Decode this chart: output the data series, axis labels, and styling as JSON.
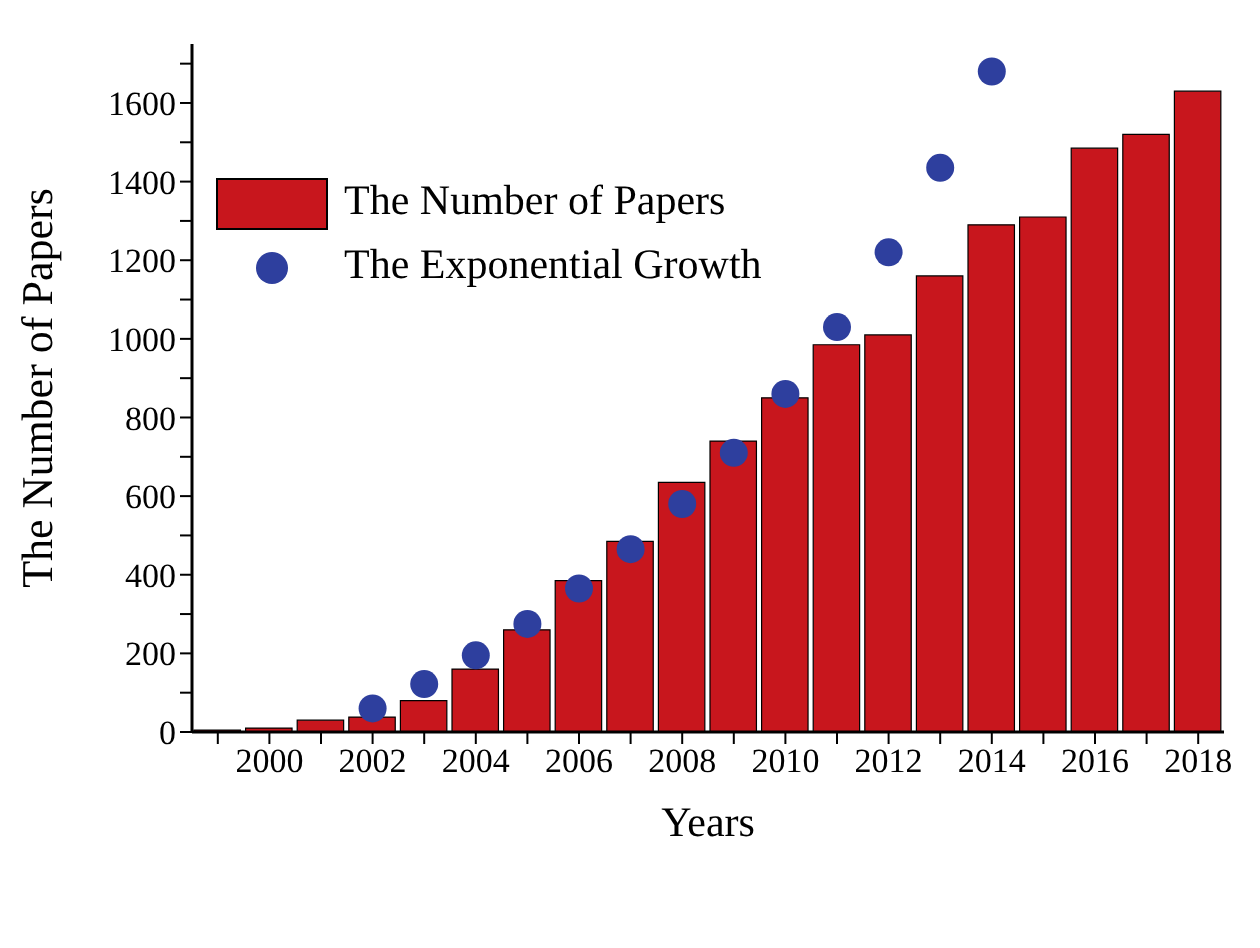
{
  "chart_data": {
    "type": "bar",
    "xlabel": "Years",
    "ylabel": "The Number of Papers",
    "x": [
      1999,
      2000,
      2001,
      2002,
      2003,
      2004,
      2005,
      2006,
      2007,
      2008,
      2009,
      2010,
      2011,
      2012,
      2013,
      2014,
      2015,
      2016,
      2017,
      2018
    ],
    "series": [
      {
        "name": "The Number of Papers",
        "color": "#c8161d",
        "values": [
          5,
          10,
          30,
          38,
          80,
          160,
          260,
          385,
          485,
          635,
          740,
          850,
          985,
          1010,
          1160,
          1290,
          1310,
          1485,
          1520,
          1630
        ]
      },
      {
        "name": "The Exponential Growth",
        "type": "scatter",
        "color": "#2e3f9e",
        "x": [
          2002,
          2003,
          2004,
          2005,
          2006,
          2007,
          2008,
          2009,
          2010,
          2011,
          2012,
          2013,
          2014
        ],
        "values": [
          60,
          122,
          195,
          275,
          365,
          465,
          580,
          710,
          860,
          1030,
          1220,
          1435,
          1680
        ]
      }
    ],
    "xlim": [
      1998.5,
      2018.5
    ],
    "xticks": [
      {
        "value": 1999,
        "label": null
      },
      2000,
      {
        "value": 2001,
        "label": null
      },
      2002,
      {
        "value": 2003,
        "label": null
      },
      2004,
      {
        "value": 2005,
        "label": null
      },
      2006,
      {
        "value": 2007,
        "label": null
      },
      2008,
      {
        "value": 2009,
        "label": null
      },
      2010,
      {
        "value": 2011,
        "label": null
      },
      2012,
      {
        "value": 2013,
        "label": null
      },
      2014,
      {
        "value": 2015,
        "label": null
      },
      2016,
      {
        "value": 2017,
        "label": null
      },
      2018
    ],
    "ylim": [
      0,
      1750
    ],
    "yticks": [
      0,
      {
        "value": 100,
        "label": null
      },
      200,
      {
        "value": 300,
        "label": null
      },
      400,
      {
        "value": 500,
        "label": null
      },
      600,
      {
        "value": 700,
        "label": null
      },
      800,
      {
        "value": 900,
        "label": null
      },
      1000,
      {
        "value": 1100,
        "label": null
      },
      1200,
      {
        "value": 1300,
        "label": null
      },
      1400,
      {
        "value": 1500,
        "label": null
      },
      1600,
      {
        "value": 1700,
        "label": null
      }
    ],
    "legend": "top left",
    "grid": false,
    "marker": "circle"
  }
}
